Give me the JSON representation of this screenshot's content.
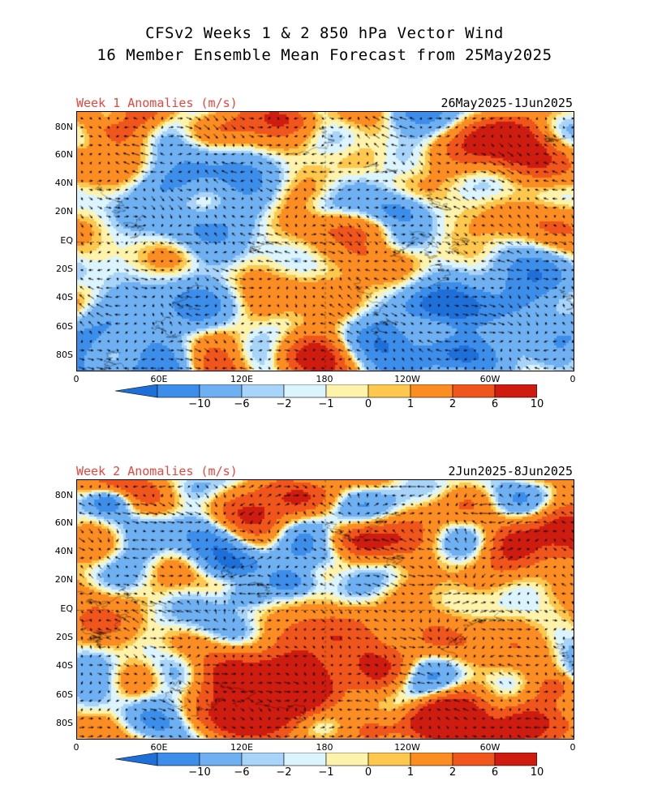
{
  "header": {
    "line1": "CFSv2 Weeks 1 & 2 850 hPa Vector Wind",
    "line2": "16 Member Ensemble Mean Forecast from 25May2025"
  },
  "panels": [
    {
      "title": "Week 1 Anomalies (m/s)",
      "dates": "26May2025-1Jun2025",
      "seed": 11
    },
    {
      "title": "Week 2 Anomalies (m/s)",
      "dates": "2Jun2025-8Jun2025",
      "seed": 29
    }
  ],
  "lat_labels": [
    "80N",
    "60N",
    "40N",
    "20N",
    "EQ",
    "20S",
    "40S",
    "60S",
    "80S"
  ],
  "lon_labels": [
    "0",
    "60E",
    "120E",
    "180",
    "120W",
    "60W",
    "0"
  ],
  "colorbar": {
    "labels": [
      "-10",
      "-6",
      "-2",
      "-1",
      "0",
      "1",
      "2",
      "6",
      "10"
    ],
    "colors": [
      "#1f6fd8",
      "#3d8eea",
      "#6fb0f2",
      "#a8d4fa",
      "#dcf4fd",
      "#fff3ac",
      "#fec74e",
      "#fb8d23",
      "#f0561c",
      "#cf1c10",
      "#a30e0b"
    ]
  },
  "title_color": "#e8453c"
}
